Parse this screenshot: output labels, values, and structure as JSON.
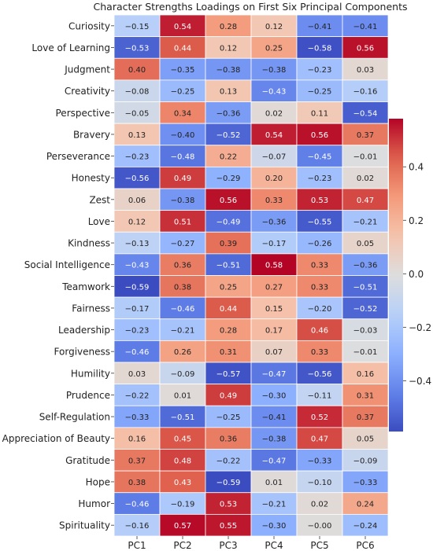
{
  "chart_data": {
    "type": "heatmap",
    "title": "Character Strengths Loadings on First Six Principal Components",
    "columns": [
      "PC1",
      "PC2",
      "PC3",
      "PC4",
      "PC5",
      "PC6"
    ],
    "rows": [
      {
        "label": "Curiosity",
        "values": [
          -0.15,
          0.54,
          0.28,
          0.12,
          -0.41,
          -0.41
        ]
      },
      {
        "label": "Love of Learning",
        "values": [
          -0.53,
          0.44,
          0.12,
          0.25,
          -0.58,
          0.56
        ]
      },
      {
        "label": "Judgment",
        "values": [
          0.4,
          -0.35,
          -0.38,
          -0.38,
          -0.23,
          0.03
        ]
      },
      {
        "label": "Creativity",
        "values": [
          -0.08,
          -0.25,
          0.13,
          -0.43,
          -0.25,
          -0.16
        ]
      },
      {
        "label": "Perspective",
        "values": [
          -0.05,
          0.34,
          -0.36,
          0.02,
          0.11,
          -0.54
        ]
      },
      {
        "label": "Bravery",
        "values": [
          0.13,
          -0.4,
          -0.52,
          0.54,
          0.56,
          0.37
        ]
      },
      {
        "label": "Perseverance",
        "values": [
          -0.23,
          -0.48,
          0.22,
          -0.07,
          -0.45,
          -0.01
        ]
      },
      {
        "label": "Honesty",
        "values": [
          -0.56,
          0.49,
          -0.29,
          0.2,
          -0.23,
          0.02
        ]
      },
      {
        "label": "Zest",
        "values": [
          0.06,
          -0.38,
          0.56,
          0.33,
          0.53,
          0.47
        ]
      },
      {
        "label": "Love",
        "values": [
          0.12,
          0.51,
          -0.49,
          -0.36,
          -0.55,
          -0.21
        ]
      },
      {
        "label": "Kindness",
        "values": [
          -0.13,
          -0.27,
          0.39,
          -0.17,
          -0.26,
          0.05
        ]
      },
      {
        "label": "Social Intelligence",
        "values": [
          -0.43,
          0.36,
          -0.51,
          0.58,
          0.33,
          -0.36
        ]
      },
      {
        "label": "Teamwork",
        "values": [
          -0.59,
          0.38,
          0.25,
          0.27,
          0.33,
          -0.51
        ]
      },
      {
        "label": "Fairness",
        "values": [
          -0.17,
          -0.46,
          0.44,
          0.15,
          -0.2,
          -0.52
        ]
      },
      {
        "label": "Leadership",
        "values": [
          -0.23,
          -0.21,
          0.28,
          0.17,
          0.46,
          -0.03
        ]
      },
      {
        "label": "Forgiveness",
        "values": [
          -0.46,
          0.26,
          0.31,
          0.07,
          0.33,
          -0.01
        ]
      },
      {
        "label": "Humility",
        "values": [
          0.03,
          -0.09,
          -0.57,
          -0.47,
          -0.56,
          0.16
        ]
      },
      {
        "label": "Prudence",
        "values": [
          -0.22,
          0.01,
          0.49,
          -0.3,
          -0.11,
          0.31
        ]
      },
      {
        "label": "Self-Regulation",
        "values": [
          -0.33,
          -0.51,
          -0.25,
          -0.41,
          0.52,
          0.37
        ]
      },
      {
        "label": "Appreciation of Beauty",
        "values": [
          0.16,
          0.45,
          0.36,
          -0.38,
          0.47,
          0.05
        ]
      },
      {
        "label": "Gratitude",
        "values": [
          0.37,
          0.48,
          -0.22,
          -0.47,
          -0.33,
          -0.09
        ]
      },
      {
        "label": "Hope",
        "values": [
          0.38,
          0.43,
          -0.59,
          0.01,
          -0.1,
          -0.33
        ]
      },
      {
        "label": "Humor",
        "values": [
          -0.46,
          -0.19,
          0.53,
          -0.21,
          0.02,
          0.24
        ]
      },
      {
        "label": "Spirituality",
        "values": [
          -0.16,
          0.57,
          0.55,
          -0.3,
          -0.0,
          -0.24
        ]
      }
    ],
    "color_range": [
      -0.59,
      0.58
    ],
    "colormap": "coolwarm",
    "colorbar_ticks": [
      -0.4,
      -0.2,
      0.0,
      0.2,
      0.4
    ],
    "colorbar_tick_labels": [
      "−0.4",
      "−0.2",
      "0.0",
      "0.2",
      "0.4"
    ]
  }
}
